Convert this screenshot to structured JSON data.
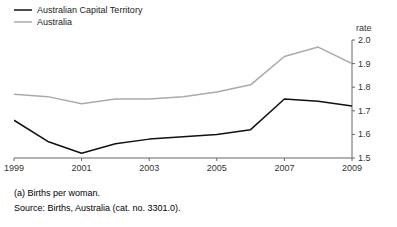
{
  "chart_data": {
    "type": "line",
    "x": [
      1999,
      2000,
      2001,
      2002,
      2003,
      2004,
      2005,
      2006,
      2007,
      2008,
      2009
    ],
    "series": [
      {
        "name": "Australian Capital Territory",
        "color": "#111111",
        "values": [
          1.66,
          1.57,
          1.52,
          1.56,
          1.58,
          1.59,
          1.6,
          1.62,
          1.75,
          1.74,
          1.72
        ]
      },
      {
        "name": "Australia",
        "color": "#aaaaaa",
        "values": [
          1.77,
          1.76,
          1.73,
          1.75,
          1.75,
          1.76,
          1.78,
          1.81,
          1.93,
          1.97,
          1.9
        ]
      }
    ],
    "xlim": [
      1999,
      2009
    ],
    "xticks": [
      1999,
      2001,
      2003,
      2005,
      2007,
      2009
    ],
    "ylim": [
      1.5,
      2.0
    ],
    "yticks": [
      1.5,
      1.6,
      1.7,
      1.8,
      1.9,
      {
        "value": 2.0,
        "label": "2.0"
      }
    ],
    "y_label": "rate",
    "annotations": [
      "(a) Births per woman.",
      "Source: Births, Australia (cat. no. 3301.0)."
    ],
    "legend": "top-left",
    "grid": false
  }
}
